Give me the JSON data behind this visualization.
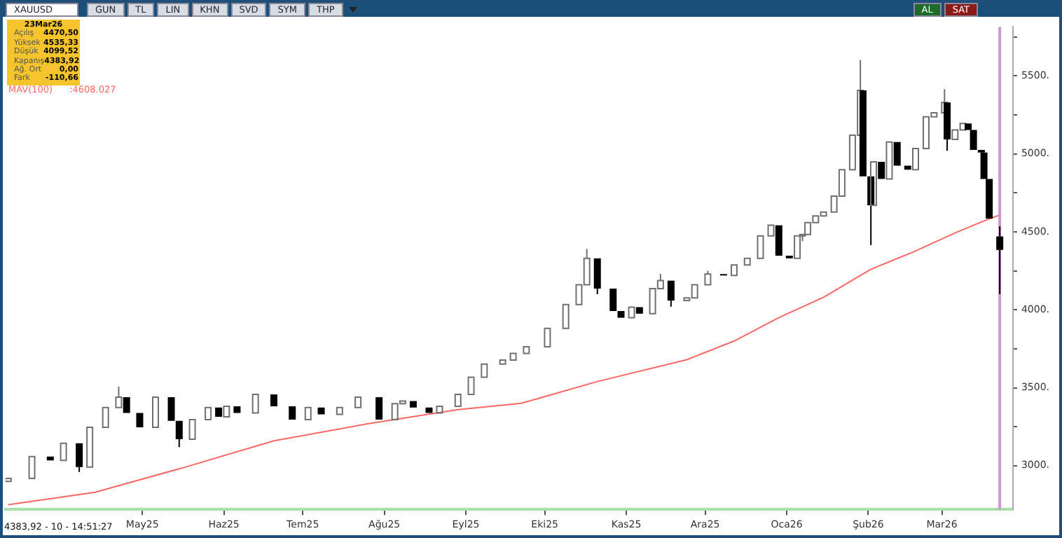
{
  "chart_data": {
    "type": "candlestick",
    "title": "XAUUSD",
    "x": [
      "2025-03-11",
      "2025-03-20",
      "2025-03-27",
      "2025-04-01",
      "2025-04-07",
      "2025-04-11",
      "2025-04-17",
      "2025-04-22",
      "2025-04-25",
      "2025-04-30",
      "2025-05-06",
      "2025-05-12",
      "2025-05-15",
      "2025-05-20",
      "2025-05-26",
      "2025-05-30",
      "2025-06-02",
      "2025-06-06",
      "2025-06-13",
      "2025-06-20",
      "2025-06-27",
      "2025-07-03",
      "2025-07-08",
      "2025-07-15",
      "2025-07-22",
      "2025-07-30",
      "2025-08-05",
      "2025-08-08",
      "2025-08-12",
      "2025-08-18",
      "2025-08-22",
      "2025-08-29",
      "2025-09-03",
      "2025-09-08",
      "2025-09-15",
      "2025-09-19",
      "2025-09-24",
      "2025-10-02",
      "2025-10-09",
      "2025-10-14",
      "2025-10-17",
      "2025-10-21",
      "2025-10-27",
      "2025-10-30",
      "2025-11-03",
      "2025-11-06",
      "2025-11-11",
      "2025-11-14",
      "2025-11-18",
      "2025-11-24",
      "2025-11-27",
      "2025-12-02",
      "2025-12-08",
      "2025-12-12",
      "2025-12-17",
      "2025-12-22",
      "2025-12-26",
      "2025-12-29",
      "2026-01-02",
      "2026-01-05",
      "2026-01-07",
      "2026-01-09",
      "2026-01-12",
      "2026-01-15",
      "2026-01-19",
      "2026-01-22",
      "2026-01-26",
      "2026-01-29",
      "2026-01-30",
      "2026-02-02",
      "2026-02-03",
      "2026-02-06",
      "2026-02-09",
      "2026-02-12",
      "2026-02-16",
      "2026-02-19",
      "2026-02-23",
      "2026-02-26",
      "2026-03-02",
      "2026-03-03",
      "2026-03-06",
      "2026-03-09",
      "2026-03-11",
      "2026-03-13",
      "2026-03-16",
      "2026-03-17",
      "2026-03-19",
      "2026-03-23"
    ],
    "ohlc": [
      [
        2900,
        2918,
        2900,
        2918
      ],
      [
        2918,
        3059,
        2918,
        3059
      ],
      [
        3059,
        3059,
        3034,
        3034
      ],
      [
        3034,
        3144,
        3034,
        3144
      ],
      [
        3144,
        3144,
        2960,
        2991
      ],
      [
        2991,
        3246,
        2991,
        3246
      ],
      [
        3246,
        3373,
        3246,
        3373
      ],
      [
        3373,
        3508,
        3373,
        3440
      ],
      [
        3440,
        3440,
        3339,
        3339
      ],
      [
        3339,
        3339,
        3246,
        3246
      ],
      [
        3246,
        3440,
        3246,
        3440
      ],
      [
        3440,
        3440,
        3288,
        3288
      ],
      [
        3288,
        3288,
        3120,
        3170
      ],
      [
        3170,
        3296,
        3170,
        3296
      ],
      [
        3296,
        3373,
        3296,
        3373
      ],
      [
        3373,
        3373,
        3314,
        3314
      ],
      [
        3314,
        3381,
        3314,
        3381
      ],
      [
        3381,
        3381,
        3339,
        3339
      ],
      [
        3339,
        3458,
        3339,
        3458
      ],
      [
        3458,
        3458,
        3381,
        3381
      ],
      [
        3381,
        3381,
        3296,
        3296
      ],
      [
        3296,
        3373,
        3296,
        3373
      ],
      [
        3373,
        3373,
        3330,
        3330
      ],
      [
        3330,
        3373,
        3330,
        3373
      ],
      [
        3373,
        3440,
        3373,
        3440
      ],
      [
        3440,
        3440,
        3296,
        3296
      ],
      [
        3296,
        3398,
        3296,
        3398
      ],
      [
        3398,
        3415,
        3398,
        3415
      ],
      [
        3415,
        3415,
        3373,
        3373
      ],
      [
        3373,
        3373,
        3339,
        3339
      ],
      [
        3339,
        3381,
        3339,
        3381
      ],
      [
        3381,
        3458,
        3381,
        3458
      ],
      [
        3458,
        3568,
        3458,
        3568
      ],
      [
        3568,
        3652,
        3568,
        3652
      ],
      [
        3652,
        3678,
        3652,
        3678
      ],
      [
        3678,
        3720,
        3678,
        3720
      ],
      [
        3720,
        3763,
        3720,
        3763
      ],
      [
        3763,
        3881,
        3763,
        3881
      ],
      [
        3881,
        4034,
        3881,
        4034
      ],
      [
        4034,
        4161,
        4034,
        4161
      ],
      [
        4161,
        4390,
        4161,
        4330
      ],
      [
        4330,
        4330,
        4100,
        4136
      ],
      [
        4136,
        4136,
        3992,
        3992
      ],
      [
        3992,
        3992,
        3949,
        3949
      ],
      [
        3949,
        4017,
        3949,
        4017
      ],
      [
        4017,
        4017,
        3975,
        3975
      ],
      [
        3975,
        4136,
        3975,
        4136
      ],
      [
        4136,
        4230,
        4136,
        4187
      ],
      [
        4187,
        4187,
        4020,
        4059
      ],
      [
        4059,
        4076,
        4059,
        4076
      ],
      [
        4076,
        4161,
        4076,
        4161
      ],
      [
        4161,
        4250,
        4161,
        4229
      ],
      [
        4229,
        4229,
        4220,
        4220
      ],
      [
        4220,
        4288,
        4220,
        4288
      ],
      [
        4288,
        4330,
        4288,
        4330
      ],
      [
        4330,
        4474,
        4330,
        4474
      ],
      [
        4474,
        4542,
        4474,
        4542
      ],
      [
        4542,
        4542,
        4347,
        4347
      ],
      [
        4347,
        4347,
        4330,
        4330
      ],
      [
        4330,
        4474,
        4330,
        4474
      ],
      [
        4474,
        4483,
        4440,
        4483
      ],
      [
        4483,
        4559,
        4483,
        4559
      ],
      [
        4559,
        4602,
        4559,
        4602
      ],
      [
        4602,
        4627,
        4602,
        4627
      ],
      [
        4627,
        4729,
        4627,
        4729
      ],
      [
        4729,
        4898,
        4729,
        4898
      ],
      [
        4898,
        5119,
        4898,
        5119
      ],
      [
        5119,
        5602,
        5119,
        5407
      ],
      [
        5407,
        5407,
        4856,
        4856
      ],
      [
        4856,
        4856,
        4415,
        4670
      ],
      [
        4670,
        4949,
        4670,
        4949
      ],
      [
        4949,
        4949,
        4839,
        4839
      ],
      [
        4839,
        5076,
        4839,
        5076
      ],
      [
        5076,
        5076,
        4924,
        4924
      ],
      [
        4924,
        4924,
        4898,
        4898
      ],
      [
        4898,
        5034,
        4898,
        5034
      ],
      [
        5034,
        5237,
        5034,
        5237
      ],
      [
        5237,
        5263,
        5237,
        5263
      ],
      [
        5263,
        5415,
        5263,
        5330
      ],
      [
        5330,
        5330,
        5020,
        5093
      ],
      [
        5093,
        5153,
        5093,
        5153
      ],
      [
        5153,
        5195,
        5153,
        5195
      ],
      [
        5195,
        5195,
        5153,
        5153
      ],
      [
        5153,
        5153,
        5025,
        5025
      ],
      [
        5025,
        5025,
        5008,
        5008
      ],
      [
        5008,
        5008,
        4839,
        4839
      ],
      [
        4839,
        4839,
        4585,
        4585
      ],
      [
        4470.5,
        4535.33,
        4099.52,
        4383.92
      ]
    ],
    "series": [
      {
        "type": "line",
        "name": "MAV(100)",
        "color": "#ff6666",
        "x": [
          "2025-03-11",
          "2025-04-13",
          "2025-05-17",
          "2025-06-20",
          "2025-07-26",
          "2025-08-29",
          "2025-09-22",
          "2025-10-21",
          "2025-11-24",
          "2025-12-12",
          "2025-12-29",
          "2026-01-15",
          "2026-02-02",
          "2026-02-18",
          "2026-03-07",
          "2026-03-17",
          "2026-03-23"
        ],
        "values": [
          2750,
          2830,
          2990,
          3160,
          3270,
          3360,
          3400,
          3540,
          3680,
          3800,
          3950,
          4080,
          4260,
          4370,
          4500,
          4570,
          4608
        ]
      }
    ],
    "xlim": [
      "2025-03-10",
      "2026-03-28"
    ],
    "xticks": [
      {
        "value": "2025-05-01",
        "label": "May25"
      },
      {
        "value": "2025-06-01",
        "label": "Haz25"
      },
      {
        "value": "2025-07-01",
        "label": "Tem25"
      },
      {
        "value": "2025-08-01",
        "label": "Ağu25"
      },
      {
        "value": "2025-09-01",
        "label": "Eyl25"
      },
      {
        "value": "2025-10-01",
        "label": "Eki25"
      },
      {
        "value": "2025-11-01",
        "label": "Kas25"
      },
      {
        "value": "2025-12-01",
        "label": "Ara25"
      },
      {
        "value": "2026-01-01",
        "label": "Oca26"
      },
      {
        "value": "2026-02-01",
        "label": "Şub26"
      },
      {
        "value": "2026-03-01",
        "label": "Mar26"
      }
    ],
    "ylim": [
      2720,
      5814
    ],
    "yticks": [
      {
        "value": 3000,
        "label": "3000."
      },
      {
        "value": 3250,
        "label": null
      },
      {
        "value": 3500,
        "label": "3500."
      },
      {
        "value": 3750,
        "label": null
      },
      {
        "value": 4000,
        "label": "4000."
      },
      {
        "value": 4250,
        "label": null
      },
      {
        "value": 4500,
        "label": "4500."
      },
      {
        "value": 4750,
        "label": null
      },
      {
        "value": 5000,
        "label": "5000."
      },
      {
        "value": 5250,
        "label": null
      },
      {
        "value": 5500,
        "label": "5500."
      },
      {
        "value": 5750,
        "label": null
      }
    ],
    "ref_lines": [
      {
        "axis": "x",
        "value": "2026-03-23",
        "color": "#cc99cc"
      }
    ],
    "legend": "top left",
    "annotations": [
      "GUN",
      "TL",
      "LIN",
      "KHN",
      "SVD",
      "SYM",
      "THP",
      "AL",
      "SAT",
      "23Mar26",
      "Açılış",
      "4470,50",
      "Yüksek",
      "4535,33",
      "Düşük",
      "4099,52",
      "Kapanış",
      "4383,92",
      "Ağ. Ort",
      "0,00",
      "Fark",
      "-110,66",
      ":4608.027",
      "4383,92 - 10 - 14:51:27"
    ]
  }
}
